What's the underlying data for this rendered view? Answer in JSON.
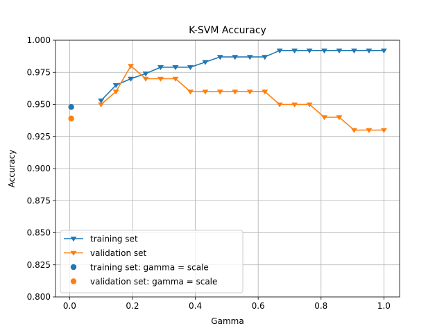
{
  "chart_data": {
    "type": "line",
    "title": "K-SVM Accuracy",
    "xlabel": "Gamma",
    "ylabel": "Accuracy",
    "xlim": [
      -0.045,
      1.05
    ],
    "ylim": [
      0.8,
      1.0
    ],
    "grid": true,
    "legend_position": "lower-left",
    "x_ticks": [
      0.0,
      0.2,
      0.4,
      0.6,
      0.8,
      1.0
    ],
    "x_tick_labels": [
      "0.0",
      "0.2",
      "0.4",
      "0.6",
      "0.8",
      "1.0"
    ],
    "y_ticks": [
      0.8,
      0.825,
      0.85,
      0.875,
      0.9,
      0.925,
      0.95,
      0.975,
      1.0
    ],
    "y_tick_labels": [
      "0.800",
      "0.825",
      "0.850",
      "0.875",
      "0.900",
      "0.925",
      "0.950",
      "0.975",
      "1.000"
    ],
    "x": [
      0.1,
      0.1474,
      0.1947,
      0.2421,
      0.2895,
      0.3368,
      0.3842,
      0.4316,
      0.4789,
      0.5263,
      0.5737,
      0.6211,
      0.6684,
      0.7158,
      0.7632,
      0.8105,
      0.8579,
      0.9053,
      0.9526,
      1.0
    ],
    "series": [
      {
        "name": "training set",
        "kind": "line",
        "marker": "triangle-down",
        "color": "#1f77b4",
        "values": [
          0.953,
          0.965,
          0.97,
          0.974,
          0.979,
          0.979,
          0.979,
          0.983,
          0.987,
          0.987,
          0.987,
          0.987,
          0.992,
          0.992,
          0.992,
          0.992,
          0.992,
          0.992,
          0.992,
          0.992
        ]
      },
      {
        "name": "validation set",
        "kind": "line",
        "marker": "triangle-down",
        "color": "#ff7f0e",
        "values": [
          0.95,
          0.96,
          0.98,
          0.97,
          0.97,
          0.97,
          0.96,
          0.96,
          0.96,
          0.96,
          0.96,
          0.96,
          0.95,
          0.95,
          0.95,
          0.94,
          0.94,
          0.93,
          0.93,
          0.93
        ]
      },
      {
        "name": "training set: gamma = scale",
        "kind": "scatter",
        "marker": "circle",
        "color": "#1f77b4",
        "points": [
          {
            "x": 0.005,
            "y": 0.948
          }
        ]
      },
      {
        "name": "validation set: gamma = scale",
        "kind": "scatter",
        "marker": "circle",
        "color": "#ff7f0e",
        "points": [
          {
            "x": 0.005,
            "y": 0.939
          }
        ]
      }
    ]
  }
}
